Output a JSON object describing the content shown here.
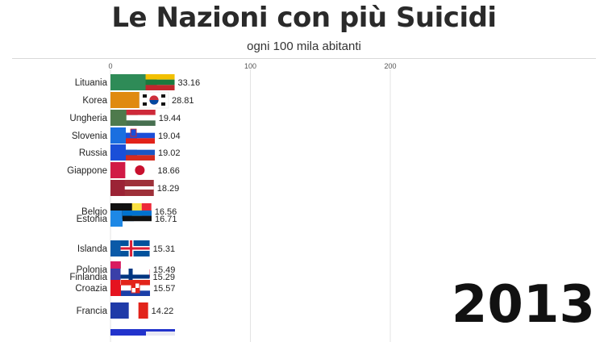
{
  "title": "Le Nazioni con più Suicidi",
  "subtitle": "ogni 100 mila abitanti",
  "year": "2013",
  "chart_data": {
    "type": "bar",
    "orientation": "horizontal",
    "xlim": [
      0,
      200
    ],
    "xticks": [
      0,
      100,
      200
    ],
    "grid": true,
    "categories": [
      "Lituania",
      "Korea",
      "Ungheria",
      "Slovenia",
      "Russia",
      "Giappone",
      "",
      "Belgio",
      "Estonia",
      "Islanda",
      "Polonia",
      "Finlandia",
      "Croazia",
      "Francia",
      ""
    ],
    "values": [
      33.16,
      28.81,
      19.44,
      19.04,
      19.02,
      18.66,
      18.29,
      16.56,
      16.71,
      15.31,
      15.49,
      15.29,
      15.57,
      14.22,
      null
    ],
    "bar_colors": [
      "#2e8b57",
      "#e08a10",
      "#4e7a4c",
      "#1a6fe0",
      "#1a4fd8",
      "#d11a46",
      "#9b2335",
      "#111111",
      "#1e88e5",
      "#0a5aa8",
      "#d81b60",
      "#3a3fa8",
      "#e5131f",
      "#1f3aa8",
      "#2233cc"
    ],
    "flags": [
      "lithuania",
      "south-korea",
      "hungary",
      "slovenia",
      "russia",
      "japan",
      "latvia",
      "belgium",
      "estonia",
      "iceland",
      "poland",
      "finland",
      "croatia",
      "france",
      "partial"
    ]
  }
}
